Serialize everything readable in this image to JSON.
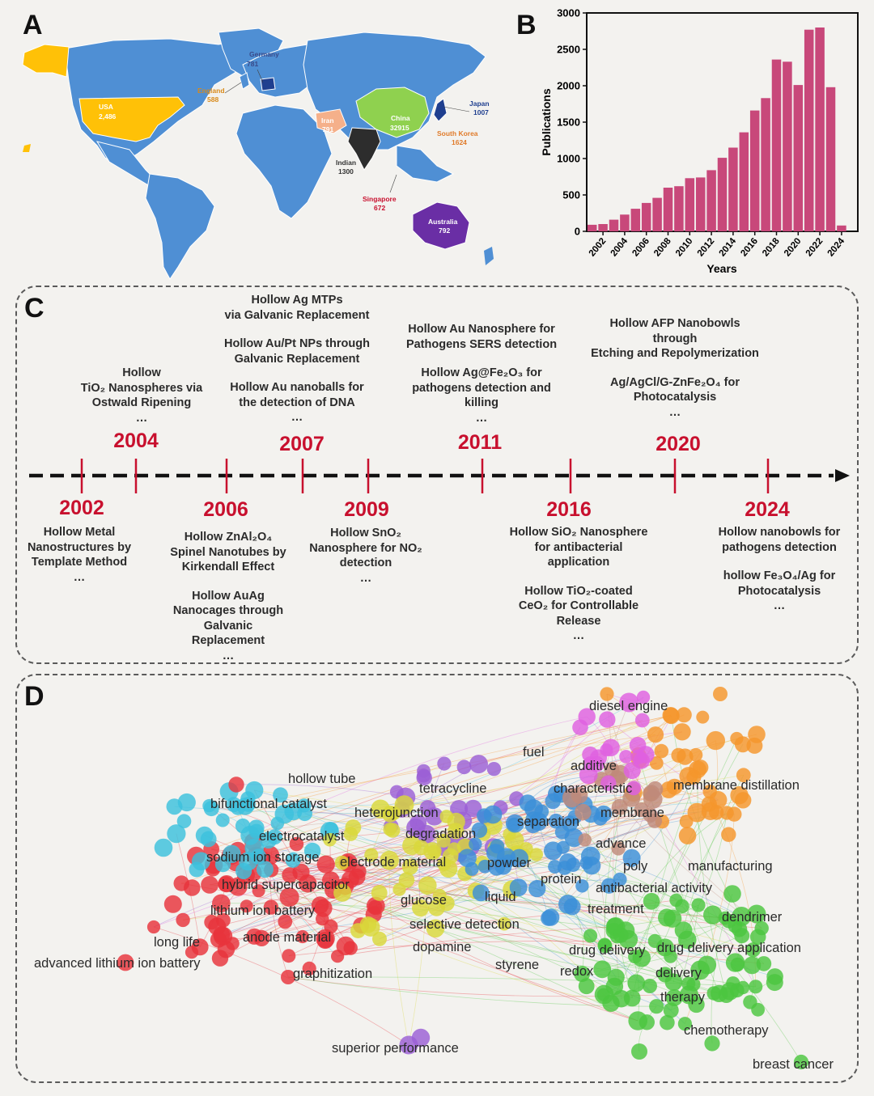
{
  "panels": {
    "a": "A",
    "b": "B",
    "c": "C",
    "d": "D"
  },
  "map": {
    "labels": [
      {
        "country": "Germany",
        "value": "781"
      },
      {
        "country": "England",
        "value": "588"
      },
      {
        "country": "USA",
        "value": "2,486"
      },
      {
        "country": "Iran",
        "value": "791"
      },
      {
        "country": "China",
        "value": "32915"
      },
      {
        "country": "Japan",
        "value": "1007"
      },
      {
        "country": "South Korea",
        "value": "1624"
      },
      {
        "country": "Indian",
        "value": "1300"
      },
      {
        "country": "Singapore",
        "value": "672"
      },
      {
        "country": "Australia",
        "value": "792"
      }
    ],
    "colors": {
      "ocean": "#ffffff",
      "land": "#4f8fd4",
      "usa": "#ffc107",
      "china": "#8fd14f",
      "india": "#2d2d2d",
      "australia": "#6a2ea5",
      "iran": "#f5b08a",
      "germany": "#1f3f8f",
      "japan": "#1f3f8f"
    }
  },
  "chart_data": {
    "type": "bar",
    "categories": [
      "2001",
      "2002",
      "2003",
      "2004",
      "2005",
      "2006",
      "2007",
      "2008",
      "2009",
      "2010",
      "2011",
      "2012",
      "2013",
      "2014",
      "2015",
      "2016",
      "2017",
      "2018",
      "2019",
      "2020",
      "2021",
      "2022",
      "2023",
      "2024",
      "2025"
    ],
    "values": [
      90,
      100,
      160,
      230,
      310,
      390,
      460,
      600,
      620,
      730,
      740,
      840,
      1010,
      1150,
      1360,
      1660,
      1830,
      2360,
      2330,
      2010,
      2770,
      2800,
      1980,
      80,
      0
    ],
    "x_tick_labels": [
      "2002",
      "2004",
      "2006",
      "2008",
      "2010",
      "2012",
      "2014",
      "2016",
      "2018",
      "2020",
      "2022",
      "2024"
    ],
    "y_ticks": [
      "0",
      "500",
      "1000",
      "1500",
      "2000",
      "2500",
      "3000"
    ],
    "ylim": [
      0,
      3000
    ],
    "xlabel": "Years",
    "ylabel": "Publications",
    "bar_color": "#c8487a"
  },
  "timeline": {
    "above": [
      {
        "year": "2004",
        "lines": [
          "Hollow",
          "TiO₂ Nanospheres via",
          "Ostwald Ripening",
          "…"
        ]
      },
      {
        "year": "2007",
        "lines": [
          "Hollow  Ag MTPs",
          "via Galvanic Replacement",
          "",
          "Hollow Au/Pt NPs through",
          "Galvanic Replacement",
          "",
          "Hollow Au nanoballs for",
          "the detection of DNA",
          "…"
        ]
      },
      {
        "year": "2011",
        "lines": [
          "Hollow Au Nanosphere for",
          "Pathogens SERS detection",
          "",
          "Hollow Ag@Fe₂O₃ for",
          "pathogens detection and",
          "killing",
          "…"
        ]
      },
      {
        "year": "2020",
        "lines": [
          "Hollow AFP Nanobowls",
          "through",
          "Etching and Repolymerization",
          "",
          "Ag/AgCl/G-ZnFe₂O₄ for",
          "Photocatalysis",
          "…"
        ]
      }
    ],
    "below": [
      {
        "year": "2002",
        "lines": [
          "Hollow Metal",
          "Nanostructures by",
          "Template Method",
          "…"
        ]
      },
      {
        "year": "2006",
        "lines": [
          "Hollow ZnAl₂O₄",
          "Spinel Nanotubes by",
          "Kirkendall Effect",
          "",
          "Hollow AuAg",
          "Nanocages through",
          "Galvanic",
          "Replacement",
          "…"
        ]
      },
      {
        "year": "2009",
        "lines": [
          "Hollow SnO₂",
          "Nanosphere for NO₂",
          "detection",
          "…"
        ]
      },
      {
        "year": "2016",
        "lines": [
          "Hollow SiO₂ Nanosphere",
          "for antibacterial",
          "application",
          "",
          "Hollow TiO₂-coated",
          "CeO₂ for Controllable",
          "Release",
          "…"
        ]
      },
      {
        "year": "2024",
        "lines": [
          "Hollow nanobowls for",
          "pathogens detection",
          "",
          "hollow Fe₃O₄/Ag for",
          "Photocatalysis",
          "…"
        ]
      }
    ]
  },
  "network": {
    "keywords": [
      "diesel engine",
      "fuel",
      "additive",
      "characteristic",
      "membrane distillation",
      "hollow tube",
      "tetracycline",
      "bifunctional catalyst",
      "heterojunction",
      "membrane",
      "separation",
      "degradation",
      "electrocatalyst",
      "advance",
      "sodium ion storage",
      "electrode material",
      "powder",
      "poly",
      "manufacturing",
      "protein",
      "hybrid supercapacitor",
      "antibacterial activity",
      "liquid",
      "glucose",
      "treatment",
      "lithium ion battery",
      "dendrimer",
      "selective detection",
      "long life",
      "anode material",
      "drug delivery",
      "drug delivery application",
      "dopamine",
      "advanced lithium ion battery",
      "styrene",
      "redox",
      "delivery",
      "graphitization",
      "therapy",
      "chemotherapy",
      "superior performance",
      "breast cancer"
    ],
    "cluster_colors": [
      "#e8333c",
      "#3cc1dd",
      "#9b5fd6",
      "#d9d83a",
      "#3a8fd8",
      "#4cc63f",
      "#f5962c",
      "#c08a7a",
      "#df60e0"
    ]
  }
}
